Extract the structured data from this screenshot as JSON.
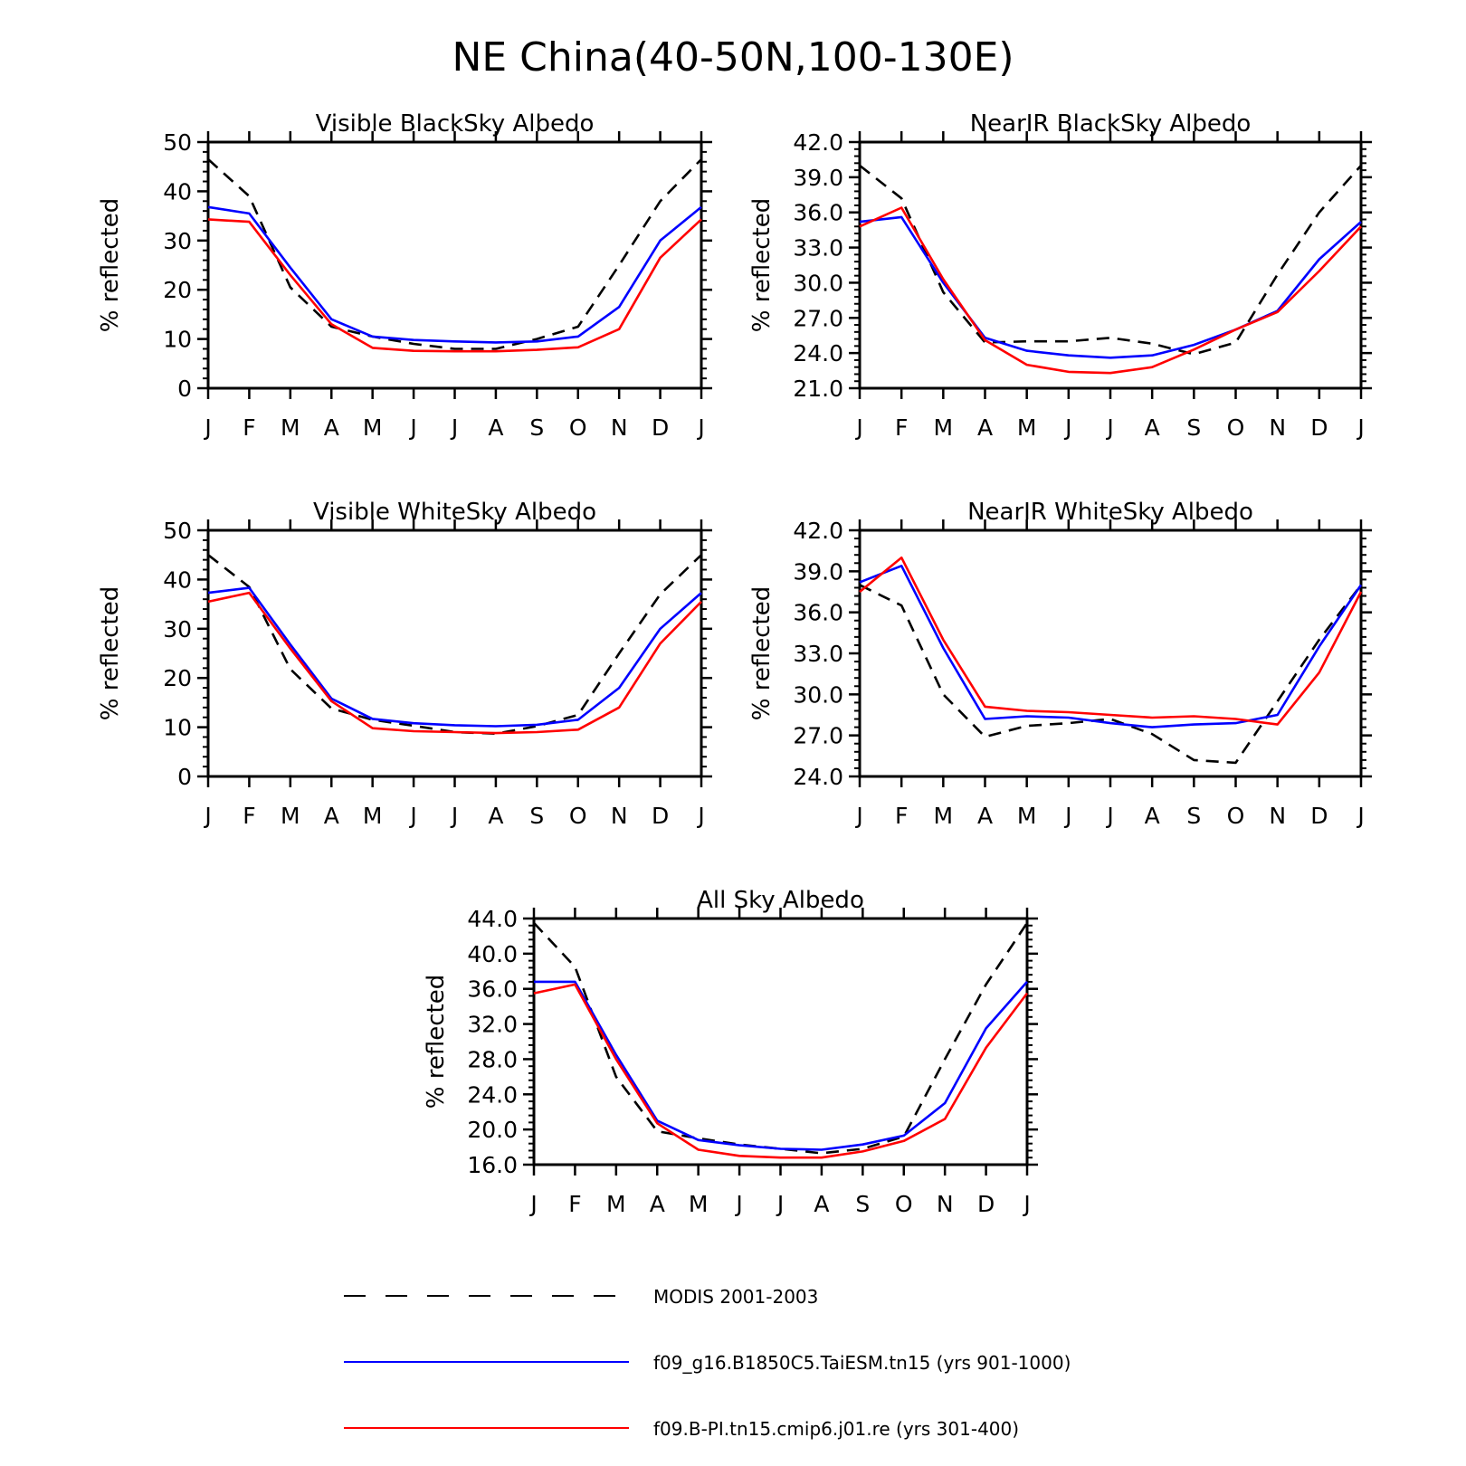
{
  "figure": {
    "title": "NE China(40-50N,100-130E)"
  },
  "legend": [
    {
      "name": "MODIS 2001-2003",
      "color": "#000000",
      "dash": true
    },
    {
      "name": "f09_g16.B1850C5.TaiESM.tn15 (yrs 901-1000)",
      "color": "#0000ff",
      "dash": false
    },
    {
      "name": "f09.B-PI.tn15.cmip6.j01.re (yrs 301-400)",
      "color": "#ff0000",
      "dash": false
    }
  ],
  "chart_data": [
    {
      "type": "line",
      "title": "Visible BlackSky Albedo",
      "xlabel": "",
      "ylabel": "% reflected",
      "categories": [
        "J",
        "F",
        "M",
        "A",
        "M",
        "J",
        "J",
        "A",
        "S",
        "O",
        "N",
        "D",
        "J"
      ],
      "ylim": [
        0,
        50
      ],
      "yticks": [
        "0",
        "10",
        "20",
        "30",
        "40",
        "50"
      ],
      "series": [
        {
          "name": "MODIS 2001-2003",
          "values": [
            46.5,
            39.0,
            20.5,
            12.5,
            10.5,
            9.0,
            8.0,
            8.0,
            10.0,
            12.5,
            25.0,
            38.0,
            46.5
          ]
        },
        {
          "name": "f09_g16.B1850C5.TaiESM.tn15 (yrs 901-1000)",
          "values": [
            36.8,
            35.5,
            24.5,
            14.0,
            10.5,
            9.8,
            9.5,
            9.3,
            9.5,
            10.5,
            16.5,
            30.0,
            36.8
          ]
        },
        {
          "name": "f09.B-PI.tn15.cmip6.j01.re (yrs 301-400)",
          "values": [
            34.3,
            33.8,
            23.0,
            13.0,
            8.2,
            7.6,
            7.5,
            7.5,
            7.8,
            8.3,
            12.0,
            26.5,
            34.3
          ]
        }
      ]
    },
    {
      "type": "line",
      "title": "NearIR BlackSky Albedo",
      "xlabel": "",
      "ylabel": "% reflected",
      "categories": [
        "J",
        "F",
        "M",
        "A",
        "M",
        "J",
        "J",
        "A",
        "S",
        "O",
        "N",
        "D",
        "J"
      ],
      "ylim": [
        21.0,
        42.0
      ],
      "yticks": [
        "21.0",
        "24.0",
        "27.0",
        "30.0",
        "33.0",
        "36.0",
        "39.0",
        "42.0"
      ],
      "series": [
        {
          "name": "MODIS 2001-2003",
          "values": [
            40.0,
            37.2,
            29.2,
            24.9,
            25.0,
            25.0,
            25.3,
            24.8,
            23.9,
            24.9,
            30.7,
            36.0,
            40.0
          ]
        },
        {
          "name": "f09_g16.B1850C5.TaiESM.tn15 (yrs 901-1000)",
          "values": [
            35.2,
            35.6,
            30.0,
            25.3,
            24.2,
            23.8,
            23.6,
            23.8,
            24.7,
            26.0,
            27.6,
            32.0,
            35.2
          ]
        },
        {
          "name": "f09.B-PI.tn15.cmip6.j01.re (yrs 301-400)",
          "values": [
            34.8,
            36.4,
            30.3,
            25.1,
            23.0,
            22.4,
            22.3,
            22.8,
            24.3,
            26.0,
            27.5,
            31.0,
            34.8
          ]
        }
      ]
    },
    {
      "type": "line",
      "title": "Visible WhiteSky Albedo",
      "xlabel": "",
      "ylabel": "% reflected",
      "categories": [
        "J",
        "F",
        "M",
        "A",
        "M",
        "J",
        "J",
        "A",
        "S",
        "O",
        "N",
        "D",
        "J"
      ],
      "ylim": [
        0,
        50
      ],
      "yticks": [
        "0",
        "10",
        "20",
        "30",
        "40",
        "50"
      ],
      "series": [
        {
          "name": "MODIS 2001-2003",
          "values": [
            45.0,
            38.5,
            21.8,
            13.8,
            11.5,
            10.3,
            9.0,
            8.7,
            10.2,
            12.5,
            25.0,
            37.0,
            45.0
          ]
        },
        {
          "name": "f09_g16.B1850C5.TaiESM.tn15 (yrs 901-1000)",
          "values": [
            37.3,
            38.3,
            26.8,
            15.8,
            11.7,
            10.8,
            10.4,
            10.2,
            10.5,
            11.5,
            18.0,
            30.0,
            37.3
          ]
        },
        {
          "name": "f09.B-PI.tn15.cmip6.j01.re (yrs 301-400)",
          "values": [
            35.5,
            37.3,
            26.0,
            15.3,
            9.8,
            9.2,
            9.0,
            8.8,
            9.0,
            9.5,
            14.0,
            27.0,
            35.5
          ]
        }
      ]
    },
    {
      "type": "line",
      "title": "NearIR WhiteSky Albedo",
      "xlabel": "",
      "ylabel": "% reflected",
      "categories": [
        "J",
        "F",
        "M",
        "A",
        "M",
        "J",
        "J",
        "A",
        "S",
        "O",
        "N",
        "D",
        "J"
      ],
      "ylim": [
        24.0,
        42.0
      ],
      "yticks": [
        "24.0",
        "27.0",
        "30.0",
        "33.0",
        "36.0",
        "39.0",
        "42.0"
      ],
      "series": [
        {
          "name": "MODIS 2001-2003",
          "values": [
            38.0,
            36.5,
            30.0,
            26.9,
            27.7,
            27.9,
            28.2,
            27.1,
            25.2,
            25.0,
            29.5,
            34.0,
            38.0
          ]
        },
        {
          "name": "f09_g16.B1850C5.TaiESM.tn15 (yrs 901-1000)",
          "values": [
            38.2,
            39.4,
            33.4,
            28.2,
            28.4,
            28.3,
            27.9,
            27.6,
            27.8,
            27.9,
            28.5,
            33.5,
            38.0
          ]
        },
        {
          "name": "f09.B-PI.tn15.cmip6.j01.re (yrs 301-400)",
          "values": [
            37.5,
            40.0,
            34.0,
            29.1,
            28.8,
            28.7,
            28.5,
            28.3,
            28.4,
            28.2,
            27.8,
            31.6,
            37.5
          ]
        }
      ]
    },
    {
      "type": "line",
      "title": "All Sky Albedo",
      "xlabel": "",
      "ylabel": "% reflected",
      "categories": [
        "J",
        "F",
        "M",
        "A",
        "M",
        "J",
        "J",
        "A",
        "S",
        "O",
        "N",
        "D",
        "J"
      ],
      "ylim": [
        16.0,
        44.0
      ],
      "yticks": [
        "16.0",
        "20.0",
        "24.0",
        "28.0",
        "32.0",
        "36.0",
        "40.0",
        "44.0"
      ],
      "series": [
        {
          "name": "MODIS 2001-2003",
          "values": [
            43.5,
            38.5,
            26.0,
            19.8,
            19.0,
            18.3,
            17.8,
            17.3,
            17.8,
            19.2,
            28.0,
            36.5,
            43.5
          ]
        },
        {
          "name": "f09_g16.B1850C5.TaiESM.tn15 (yrs 901-1000)",
          "values": [
            36.8,
            36.8,
            28.5,
            21.0,
            18.8,
            18.2,
            17.8,
            17.7,
            18.3,
            19.3,
            23.0,
            31.5,
            36.8
          ]
        },
        {
          "name": "f09.B-PI.tn15.cmip6.j01.re (yrs 301-400)",
          "values": [
            35.5,
            36.5,
            28.0,
            20.7,
            17.7,
            17.0,
            16.8,
            16.8,
            17.5,
            18.7,
            21.2,
            29.3,
            35.5
          ]
        }
      ]
    }
  ]
}
